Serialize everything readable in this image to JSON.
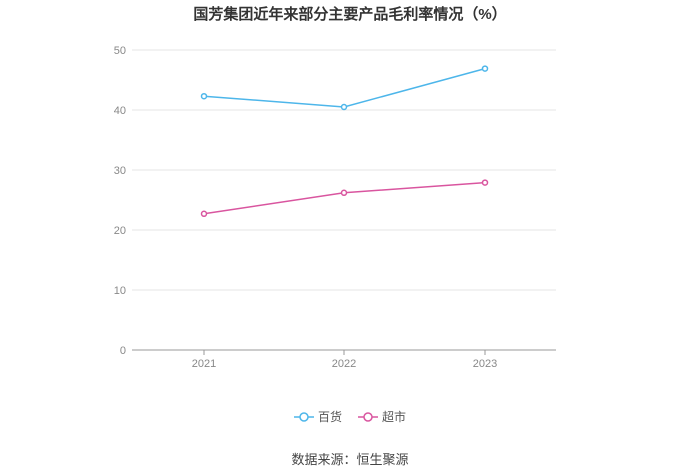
{
  "chart_data": {
    "type": "line",
    "title": "国芳集团近年来部分主要产品毛利率情况（%）",
    "x": [
      "2021",
      "2022",
      "2023"
    ],
    "ylim": [
      0,
      50
    ],
    "yticks": [
      0,
      10,
      20,
      30,
      40,
      50
    ],
    "grid": true,
    "legend_position": "bottom",
    "series": [
      {
        "name": "百货",
        "values": [
          42.3,
          40.5,
          46.9
        ],
        "color": "#4db6ea"
      },
      {
        "name": "超市",
        "values": [
          22.7,
          26.2,
          27.9
        ],
        "color": "#d9559f"
      }
    ]
  },
  "source_text": "数据来源：恒生聚源"
}
